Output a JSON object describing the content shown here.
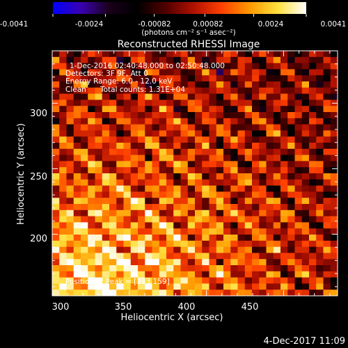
{
  "chart_data": {
    "type": "heatmap",
    "title": "Reconstructed RHESSI Image",
    "colorbar": {
      "ticks": [
        "-0.0041",
        "-0.0024",
        "-0.00082",
        "0.00082",
        "0.0024",
        "0.0041"
      ],
      "unit_label": "(photons cm⁻² s⁻¹ asec⁻²)",
      "range": [
        -0.0041,
        0.0041
      ],
      "colormap": [
        "#0000ff",
        "#3a00b0",
        "#1a001a",
        "#000000",
        "#500000",
        "#b01000",
        "#ff4000",
        "#ff9a00",
        "#ffe040",
        "#ffffff"
      ]
    },
    "annotations": {
      "time_range": "1-Dec-2016 02:40:48.000 to 02:50:48.000",
      "detectors": "Detectors: 3F 9F, Att 0",
      "energy_range": "Energy Range: 6.0 - 12.0 keV",
      "clean": "Clean",
      "total_counts": "Total counts: 1.31E+04",
      "peak": "Position of Peak = [333,159]"
    },
    "xlabel": "Heliocentric X (arcsec)",
    "ylabel": "Heliocentric Y (arcsec)",
    "xlim": [
      300,
      485
    ],
    "ylim": [
      153,
      340
    ],
    "xticks": [
      300,
      350,
      400,
      450
    ],
    "yticks": [
      200,
      250,
      300
    ],
    "peak": [
      333,
      159
    ],
    "grid": false,
    "legend": "none"
  },
  "footer": {
    "timestamp": "4-Dec-2017 11:09"
  }
}
